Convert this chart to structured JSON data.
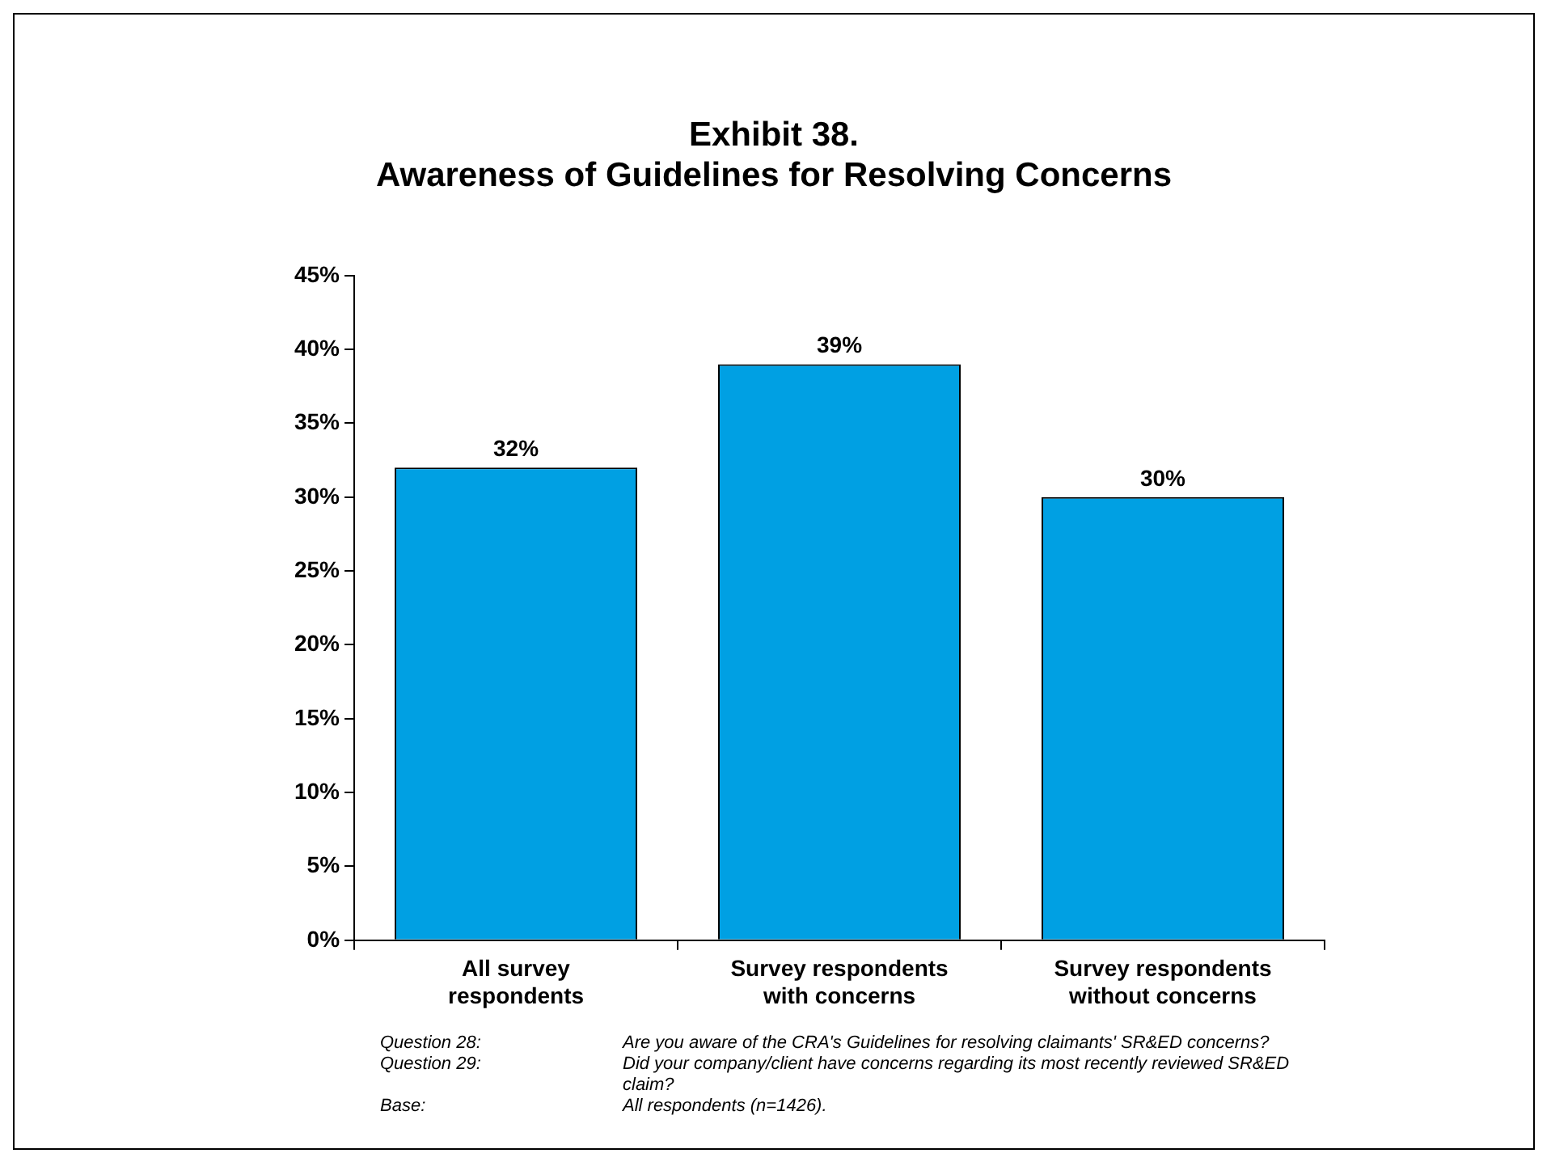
{
  "chart_data": {
    "type": "bar",
    "title": "Exhibit 38.\nAwareness of Guidelines for Resolving Concerns",
    "categories": [
      "All survey respondents",
      "Survey respondents with concerns",
      "Survey respondents without concerns"
    ],
    "values": [
      32,
      39,
      30
    ],
    "color": "#00a0e3",
    "value_labels": [
      "32%",
      "39%",
      "30%"
    ],
    "ylim": [
      0,
      45
    ],
    "yticks": [
      {
        "value": 0,
        "label": "0%"
      },
      {
        "value": 5,
        "label": "5%"
      },
      {
        "value": 10,
        "label": "10%"
      },
      {
        "value": 15,
        "label": "15%"
      },
      {
        "value": 20,
        "label": "20%"
      },
      {
        "value": 25,
        "label": "25%"
      },
      {
        "value": 30,
        "label": "30%"
      },
      {
        "value": 35,
        "label": "35%"
      },
      {
        "value": 40,
        "label": "40%"
      },
      {
        "value": 45,
        "label": "45%"
      }
    ],
    "grid": false,
    "legend": false,
    "annotations": [
      "Question 28:",
      "Are you aware of the CRA's Guidelines for resolving claimants' SR&ED concerns?",
      "Question 29:",
      "Did your company/client have concerns regarding its most recently reviewed SR&ED claim?",
      "Base:",
      "All respondents (n=1426)."
    ]
  }
}
